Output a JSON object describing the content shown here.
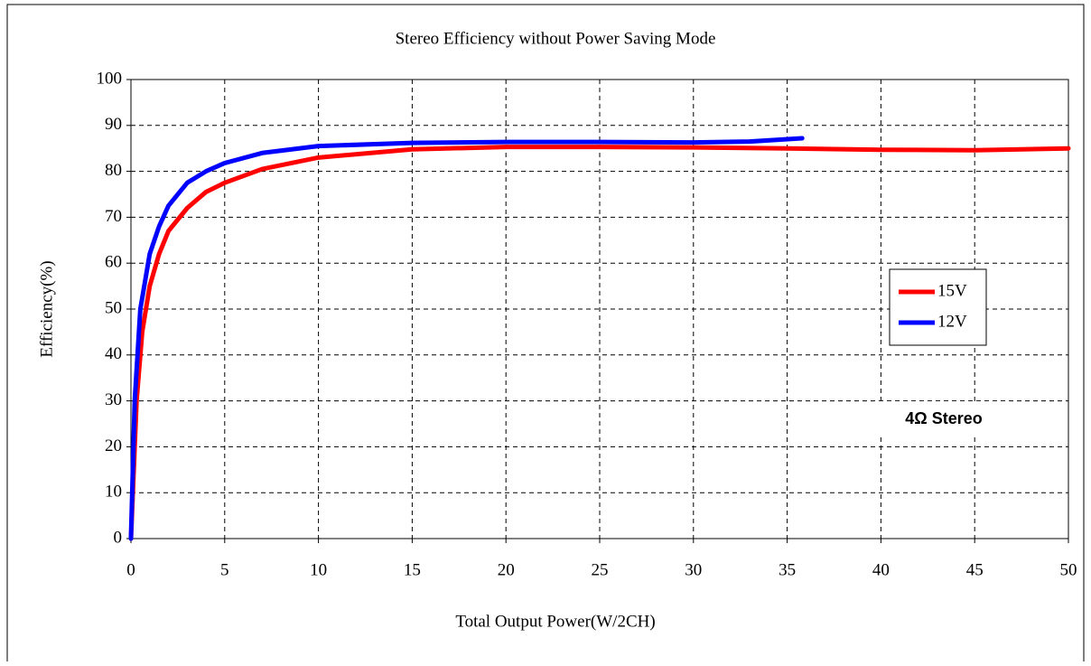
{
  "chart_data": {
    "type": "line",
    "title": "Stereo Efficiency without Power Saving Mode",
    "xlabel": "Total Output Power(W/2CH)",
    "ylabel": "Efficiency(%)",
    "annotation": "4Ω  Stereo",
    "xlim": [
      0,
      50
    ],
    "xticks": [
      0,
      5,
      10,
      15,
      20,
      25,
      30,
      35,
      40,
      45,
      50
    ],
    "ylim": [
      0,
      100
    ],
    "yticks": [
      0,
      10,
      20,
      30,
      40,
      50,
      60,
      70,
      80,
      90,
      100
    ],
    "grid": true,
    "legend": "right",
    "series": [
      {
        "name": "15V",
        "color": "#ff0000",
        "x": [
          0,
          0.3,
          0.6,
          1,
          1.5,
          2,
          3,
          4,
          5,
          7,
          10,
          15,
          20,
          25,
          30,
          35,
          40,
          45,
          50
        ],
        "values": [
          0,
          30,
          45,
          55,
          62,
          67,
          72,
          75.5,
          77.5,
          80.5,
          83,
          84.8,
          85.3,
          85.3,
          85.2,
          85,
          84.7,
          84.6,
          85
        ]
      },
      {
        "name": "12V",
        "color": "#0000ff",
        "x": [
          0,
          0.2,
          0.5,
          1,
          1.5,
          2,
          3,
          4,
          5,
          7,
          10,
          15,
          20,
          25,
          30,
          33,
          35.8
        ],
        "values": [
          0,
          30,
          50,
          62,
          68,
          72.5,
          77.5,
          80,
          81.8,
          84,
          85.5,
          86.2,
          86.4,
          86.4,
          86.3,
          86.5,
          87.2
        ]
      }
    ]
  }
}
